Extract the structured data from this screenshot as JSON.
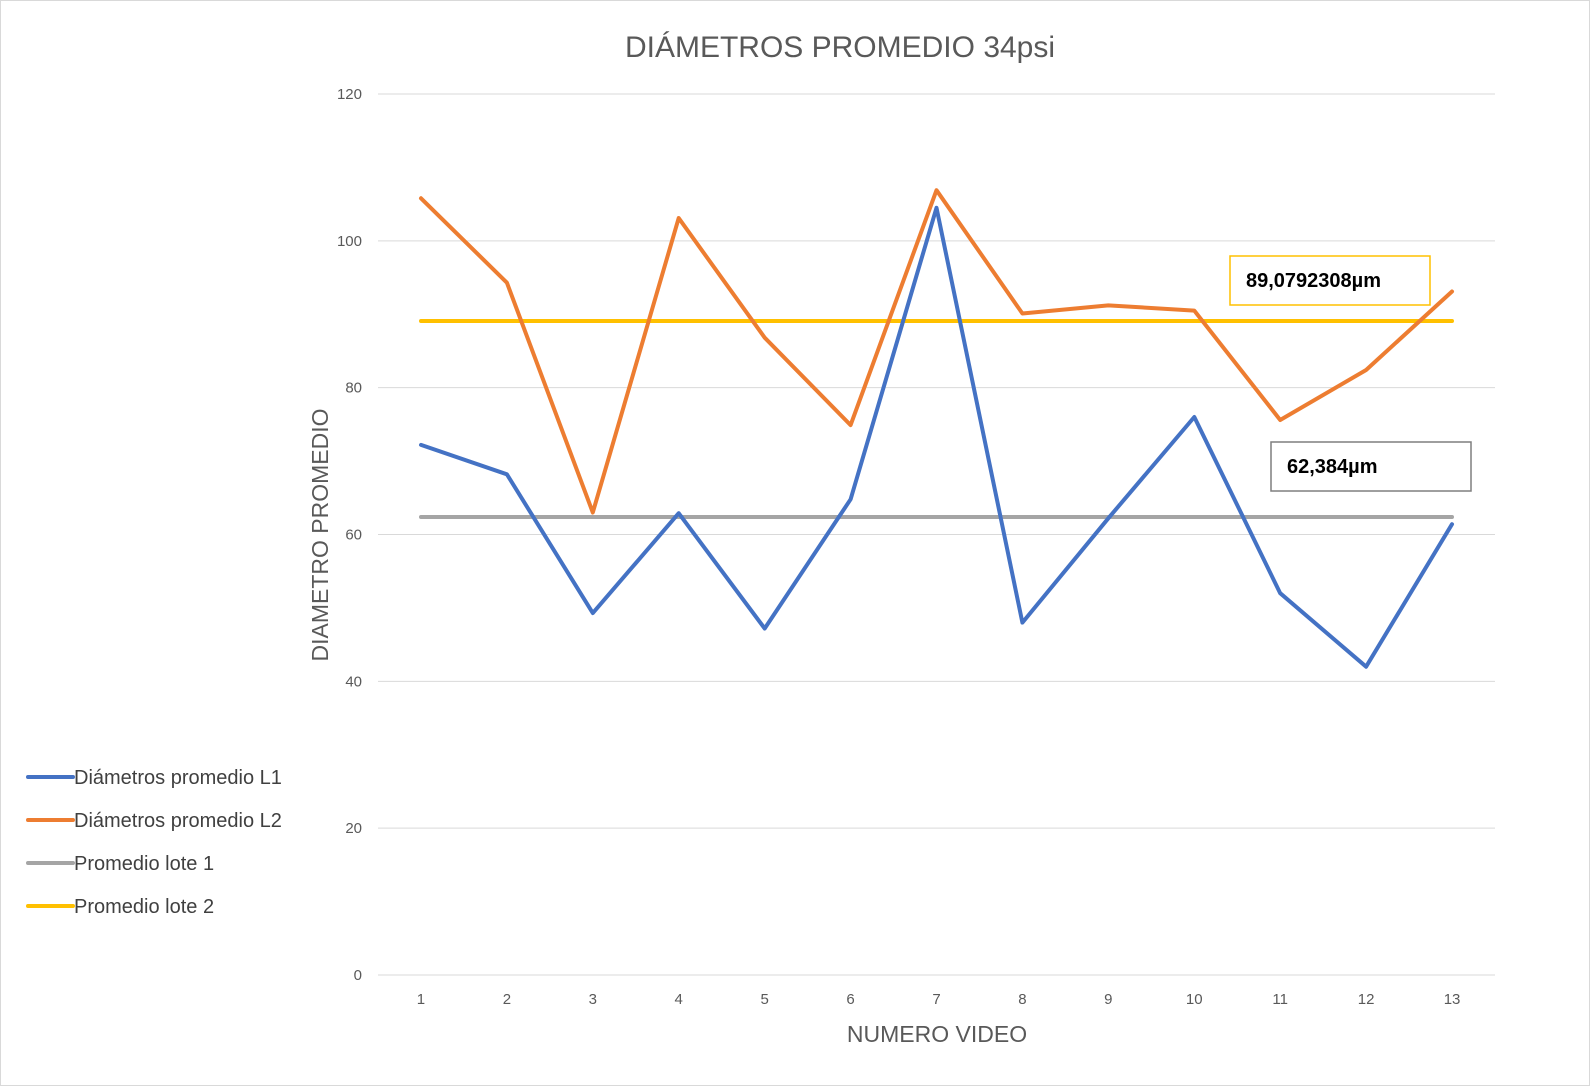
{
  "chart_data": {
    "type": "line",
    "title": "DIÁMETROS PROMEDIO 34psi",
    "xlabel": "NUMERO VIDEO",
    "ylabel": "DIAMETRO PROMEDIO",
    "ylim": [
      0,
      120
    ],
    "yticks": [
      0,
      20,
      40,
      60,
      80,
      100,
      120
    ],
    "categories": [
      "1",
      "2",
      "3",
      "4",
      "5",
      "6",
      "7",
      "8",
      "9",
      "10",
      "11",
      "12",
      "13"
    ],
    "grid": true,
    "legend_position": "left",
    "series": [
      {
        "name": "Diámetros promedio L1",
        "color": "#4472c4",
        "values": [
          72.2,
          68.2,
          49.3,
          62.9,
          47.2,
          64.8,
          104.5,
          48.0,
          62.2,
          76.0,
          52.0,
          42.0,
          61.4
        ]
      },
      {
        "name": "Diámetros promedio L2",
        "color": "#ed7d31",
        "values": [
          105.8,
          94.3,
          63.0,
          103.1,
          86.8,
          74.9,
          106.9,
          90.1,
          91.2,
          90.5,
          75.6,
          82.4,
          93.1
        ]
      },
      {
        "name": "Promedio lote 1",
        "color": "#a5a5a5",
        "values": [
          62.384,
          62.384,
          62.384,
          62.384,
          62.384,
          62.384,
          62.384,
          62.384,
          62.384,
          62.384,
          62.384,
          62.384,
          62.384
        ]
      },
      {
        "name": "Promedio lote 2",
        "color": "#ffc000",
        "values": [
          89.0792308,
          89.0792308,
          89.0792308,
          89.0792308,
          89.0792308,
          89.0792308,
          89.0792308,
          89.0792308,
          89.0792308,
          89.0792308,
          89.0792308,
          89.0792308,
          89.0792308
        ]
      }
    ],
    "annotations": [
      {
        "text": "89,0792308µm",
        "border_color": "#ffc000",
        "series": "Promedio lote 2"
      },
      {
        "text": "62,384µm",
        "border_color": "#7f7f7f",
        "series": "Promedio lote 1"
      }
    ]
  }
}
